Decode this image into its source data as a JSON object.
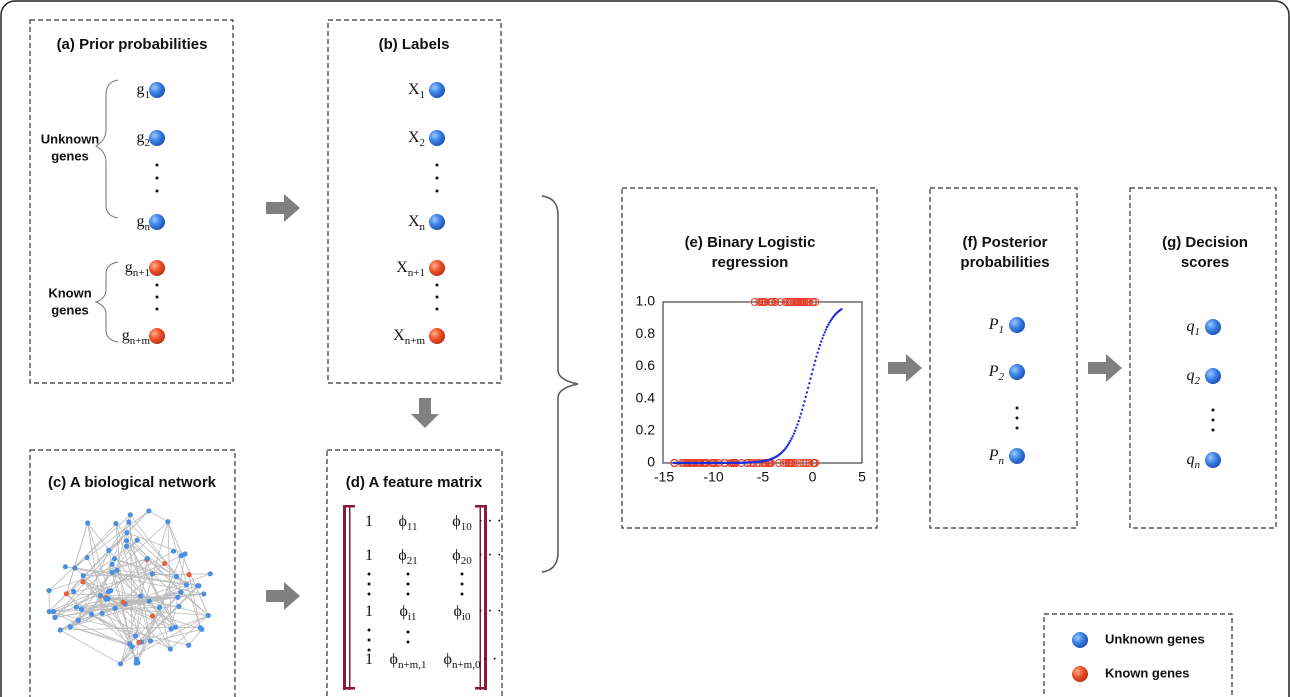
{
  "panels": {
    "a": {
      "title": "(a) Prior probabilities",
      "unknown_label": [
        "Unknown",
        "genes"
      ],
      "known_label": [
        "Known",
        "genes"
      ],
      "items": [
        {
          "base": "g",
          "sub": "1"
        },
        {
          "base": "g",
          "sub": "2"
        },
        {
          "base": "g",
          "sub": "n"
        },
        {
          "base": "g",
          "sub": "n+1"
        },
        {
          "base": "g",
          "sub": "n+m"
        }
      ]
    },
    "b": {
      "title": "(b) Labels",
      "items": [
        {
          "base": "X",
          "sub": "1"
        },
        {
          "base": "X",
          "sub": "2"
        },
        {
          "base": "X",
          "sub": "n"
        },
        {
          "base": "X",
          "sub": "n+1"
        },
        {
          "base": "X",
          "sub": "n+m"
        }
      ]
    },
    "c": {
      "title": "(c) A biological network"
    },
    "d": {
      "title": "(d) A feature matrix",
      "rows": [
        [
          {
            "base": "1",
            "sub": ""
          },
          {
            "base": "ϕ",
            "sub": "11"
          },
          {
            "base": "ϕ",
            "sub": "10"
          },
          {
            "base": "· · ·",
            "sub": ""
          }
        ],
        [
          {
            "base": "1",
            "sub": ""
          },
          {
            "base": "ϕ",
            "sub": "21"
          },
          {
            "base": "ϕ",
            "sub": "20"
          },
          {
            "base": "· · ·",
            "sub": ""
          }
        ],
        [
          {
            "base": "1",
            "sub": ""
          },
          {
            "base": "ϕ",
            "sub": "i1"
          },
          {
            "base": "ϕ",
            "sub": "i0"
          },
          {
            "base": "· · ·",
            "sub": ""
          }
        ],
        [
          {
            "base": "1",
            "sub": ""
          },
          {
            "base": "ϕ",
            "sub": "n+m,1"
          },
          {
            "base": "ϕ",
            "sub": "n+m,0"
          },
          {
            "base": "· ·",
            "sub": ""
          }
        ]
      ]
    },
    "e": {
      "title": [
        "(e) Binary Logistic",
        "regression"
      ],
      "yticks": [
        "1.0",
        "0.8",
        "0.6",
        "0.4",
        "0.2",
        "0"
      ],
      "xticks": [
        "-15",
        "-10",
        "-5",
        "0",
        "5"
      ]
    },
    "f": {
      "title": [
        "(f) Posterior",
        "probabilities"
      ],
      "items": [
        {
          "base": "P",
          "sub": "1"
        },
        {
          "base": "P",
          "sub": "2"
        },
        {
          "base": "P",
          "sub": "n"
        }
      ]
    },
    "g": {
      "title": [
        "(g) Decision",
        "scores"
      ],
      "items": [
        {
          "base": "q",
          "sub": "1"
        },
        {
          "base": "q",
          "sub": "2"
        },
        {
          "base": "q",
          "sub": "n"
        }
      ]
    }
  },
  "legend": [
    "Unknown genes",
    "Known genes"
  ]
}
